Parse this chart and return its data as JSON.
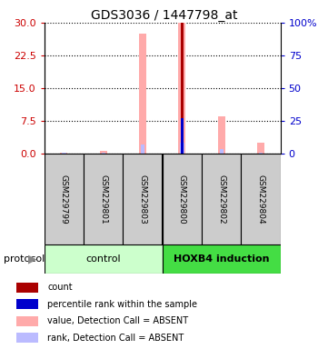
{
  "title": "GDS3036 / 1447798_at",
  "samples": [
    "GSM229799",
    "GSM229801",
    "GSM229803",
    "GSM229800",
    "GSM229802",
    "GSM229804"
  ],
  "ylim_left": [
    0,
    30
  ],
  "ylim_right": [
    0,
    100
  ],
  "yticks_left": [
    0,
    7.5,
    15,
    22.5,
    30
  ],
  "yticks_right": [
    0,
    25,
    50,
    75,
    100
  ],
  "bar_value_absent": [
    0.3,
    0.6,
    27.5,
    30.0,
    8.5,
    2.5
  ],
  "bar_rank_absent": [
    0.4,
    0.5,
    7.0,
    8.5,
    3.5,
    0.8
  ],
  "bar_count": [
    0.0,
    0.0,
    0.0,
    30.0,
    0.0,
    0.0
  ],
  "bar_percentile_pct": [
    0.0,
    0.0,
    0.0,
    27.0,
    0.0,
    0.0
  ],
  "bar_color_value_absent": "#ffaaaa",
  "bar_color_rank_absent": "#bbbbff",
  "bar_color_count": "#aa0000",
  "bar_color_percentile": "#0000cc",
  "left_tick_color": "#cc0000",
  "right_tick_color": "#0000cc",
  "control_color": "#ccffcc",
  "hoxb4_color": "#44dd44",
  "label_box_color": "#cccccc",
  "legend_items": [
    {
      "label": "count",
      "color": "#aa0000"
    },
    {
      "label": "percentile rank within the sample",
      "color": "#0000cc"
    },
    {
      "label": "value, Detection Call = ABSENT",
      "color": "#ffaaaa"
    },
    {
      "label": "rank, Detection Call = ABSENT",
      "color": "#bbbbff"
    }
  ]
}
